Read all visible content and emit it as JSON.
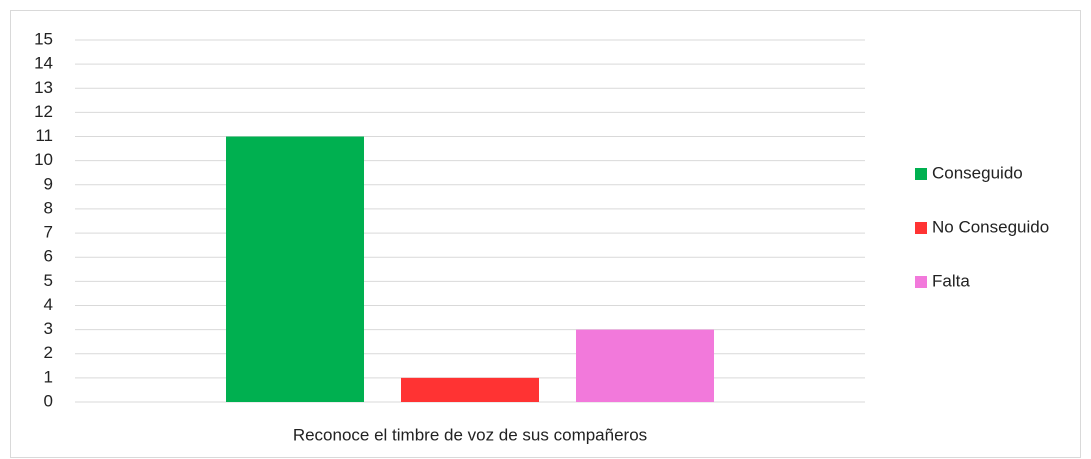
{
  "chart_data": {
    "type": "bar",
    "categories": [
      "Reconoce el timbre de voz de sus compañeros"
    ],
    "series": [
      {
        "name": "Conseguido",
        "color": "#00b050",
        "values": [
          11
        ]
      },
      {
        "name": "No Conseguido",
        "color": "#ff3333",
        "values": [
          1
        ]
      },
      {
        "name": "Falta",
        "color": "#f279db",
        "values": [
          3
        ]
      }
    ],
    "ylim": [
      0,
      15
    ],
    "yticks": [
      0,
      1,
      2,
      3,
      4,
      5,
      6,
      7,
      8,
      9,
      10,
      11,
      12,
      13,
      14,
      15
    ],
    "grid": true,
    "legend": "right"
  }
}
